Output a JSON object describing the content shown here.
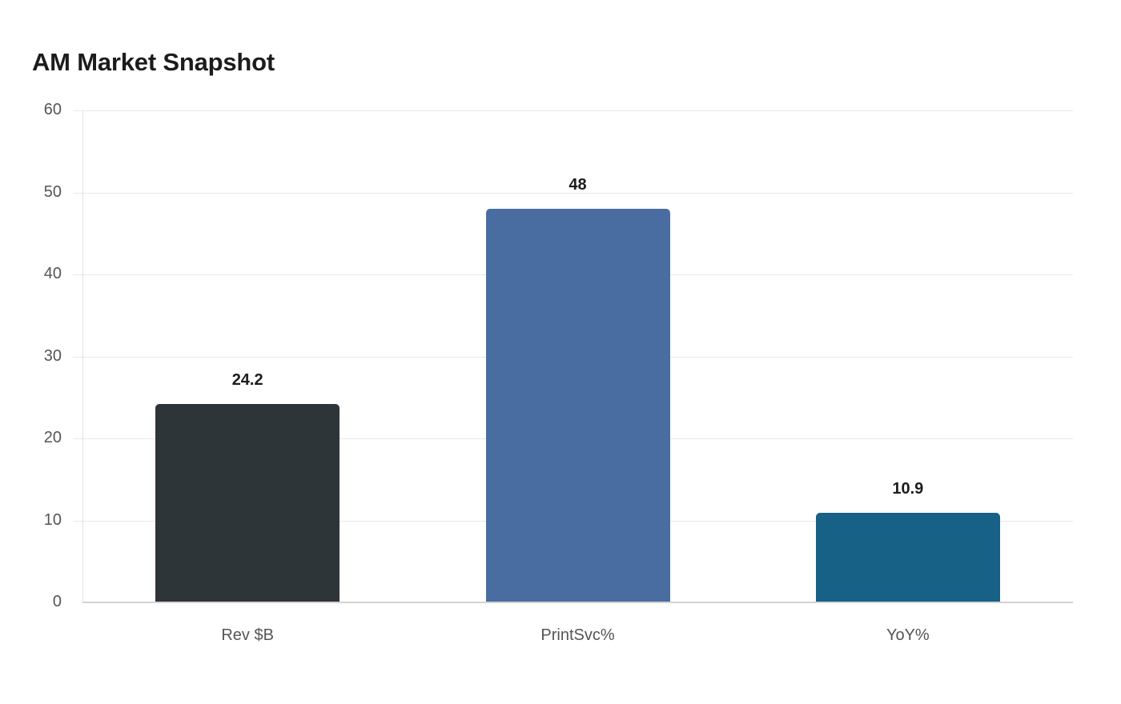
{
  "chart_data": {
    "type": "bar",
    "title": "AM Market Snapshot",
    "categories": [
      "Rev $B",
      "PrintSvc%",
      "YoY%"
    ],
    "values": [
      24.2,
      48,
      10.9
    ],
    "colors": [
      "#2e3538",
      "#4a6da1",
      "#176086"
    ],
    "xlabel": "",
    "ylabel": "",
    "ylim": [
      0,
      60
    ],
    "yticks": [
      0,
      10,
      20,
      30,
      40,
      50,
      60
    ],
    "grid": true,
    "legend": "none",
    "data_labels": true
  },
  "title": "AM Market Snapshot",
  "yticks": [
    "0",
    "10",
    "20",
    "30",
    "40",
    "50",
    "60"
  ],
  "bars": [
    {
      "label": "Rev $B",
      "value_label": "24.2"
    },
    {
      "label": "PrintSvc%",
      "value_label": "48"
    },
    {
      "label": "YoY%",
      "value_label": "10.9"
    }
  ]
}
